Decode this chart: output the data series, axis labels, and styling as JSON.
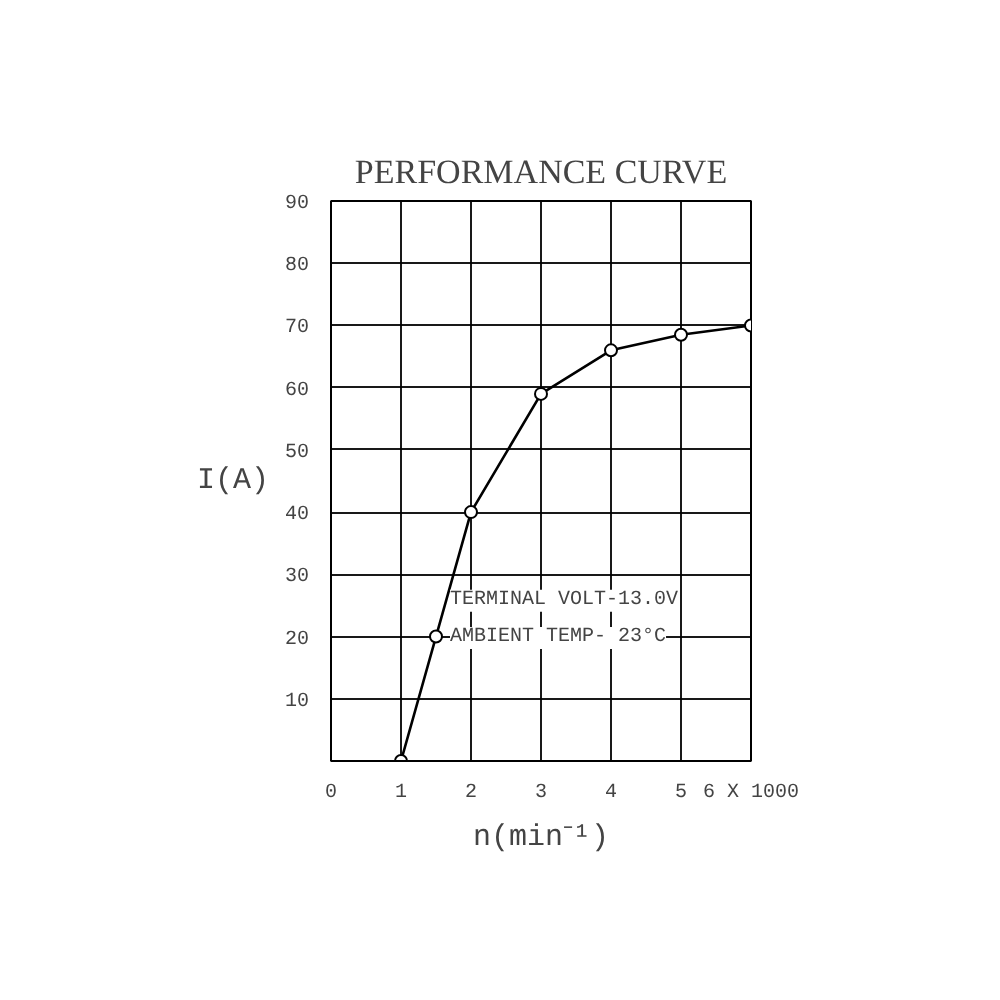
{
  "chart_data": {
    "type": "line",
    "title": "PERFORMANCE CURVE",
    "xlabel": "n(min⁻¹)",
    "ylabel": "I(A)",
    "x": [
      1,
      1.5,
      2,
      3,
      4,
      5,
      6
    ],
    "series": [
      {
        "color": "#000000",
        "values": [
          0,
          20,
          40,
          59,
          66,
          68.5,
          70
        ]
      }
    ],
    "xlim": [
      0,
      6
    ],
    "xticks": [
      0,
      1,
      2,
      3,
      4,
      5,
      {
        "value": 6,
        "label": "6 X 1000"
      }
    ],
    "ylim": [
      0,
      90
    ],
    "yticks": [
      10,
      20,
      30,
      40,
      50,
      60,
      70,
      80,
      90
    ],
    "grid": true,
    "marker": "circle",
    "line_style": "solid",
    "annotations": [
      "TERMINAL VOLT-13.0V",
      "AMBIENT TEMP- 23°C"
    ]
  }
}
